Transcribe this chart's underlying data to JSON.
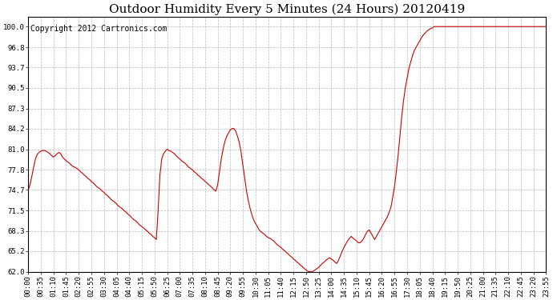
{
  "title": "Outdoor Humidity Every 5 Minutes (24 Hours) 20120419",
  "copyright": "Copyright 2012 Cartronics.com",
  "line_color": "#cc0000",
  "bg_color": "#ffffff",
  "plot_bg_color": "#ffffff",
  "grid_color": "#bbbbbb",
  "ylim": [
    62.0,
    101.5
  ],
  "yticks": [
    62.0,
    65.2,
    68.3,
    71.5,
    74.7,
    77.8,
    81.0,
    84.2,
    87.3,
    90.5,
    93.7,
    96.8,
    100.0
  ],
  "title_fontsize": 11,
  "tick_fontsize": 6.5,
  "copyright_fontsize": 7,
  "humidity_data": [
    74.7,
    75.5,
    76.8,
    78.2,
    79.5,
    80.2,
    80.5,
    80.7,
    80.8,
    80.8,
    80.7,
    80.5,
    80.3,
    80.0,
    79.8,
    80.0,
    80.3,
    80.5,
    80.3,
    79.8,
    79.5,
    79.2,
    79.0,
    78.8,
    78.5,
    78.3,
    78.2,
    78.0,
    77.8,
    77.5,
    77.3,
    77.0,
    76.8,
    76.5,
    76.3,
    76.0,
    75.8,
    75.5,
    75.2,
    75.0,
    74.8,
    74.5,
    74.3,
    74.0,
    73.8,
    73.5,
    73.2,
    73.0,
    72.8,
    72.5,
    72.2,
    72.0,
    71.8,
    71.5,
    71.3,
    71.0,
    70.8,
    70.5,
    70.2,
    70.0,
    69.8,
    69.5,
    69.2,
    69.0,
    68.8,
    68.5,
    68.3,
    68.0,
    67.8,
    67.5,
    67.3,
    67.0,
    71.5,
    77.0,
    79.5,
    80.3,
    80.7,
    81.0,
    80.8,
    80.7,
    80.5,
    80.3,
    80.0,
    79.7,
    79.5,
    79.2,
    79.0,
    78.8,
    78.5,
    78.2,
    78.0,
    77.8,
    77.5,
    77.3,
    77.0,
    76.8,
    76.5,
    76.3,
    76.0,
    75.8,
    75.5,
    75.3,
    75.0,
    74.7,
    74.5,
    75.5,
    77.5,
    79.5,
    81.0,
    82.2,
    83.0,
    83.5,
    84.0,
    84.2,
    84.2,
    83.8,
    83.0,
    82.0,
    80.5,
    78.5,
    76.5,
    74.5,
    73.0,
    71.8,
    70.8,
    70.0,
    69.5,
    69.0,
    68.5,
    68.2,
    68.0,
    67.8,
    67.5,
    67.3,
    67.2,
    67.0,
    66.8,
    66.5,
    66.2,
    66.0,
    65.8,
    65.5,
    65.3,
    65.0,
    64.8,
    64.5,
    64.3,
    64.0,
    63.8,
    63.5,
    63.3,
    63.0,
    62.8,
    62.5,
    62.3,
    62.1,
    62.0,
    62.0,
    62.1,
    62.3,
    62.5,
    62.7,
    63.0,
    63.3,
    63.5,
    63.8,
    64.0,
    64.2,
    64.0,
    63.8,
    63.5,
    63.3,
    63.8,
    64.5,
    65.2,
    65.8,
    66.3,
    66.8,
    67.2,
    67.5,
    67.2,
    67.0,
    66.8,
    66.5,
    66.5,
    66.8,
    67.2,
    67.8,
    68.3,
    68.5,
    68.0,
    67.5,
    67.0,
    67.5,
    68.0,
    68.5,
    69.0,
    69.5,
    70.0,
    70.5,
    71.2,
    72.0,
    73.5,
    75.2,
    77.5,
    80.0,
    83.0,
    86.0,
    88.5,
    90.5,
    92.0,
    93.5,
    94.5,
    95.5,
    96.3,
    96.8,
    97.3,
    97.8,
    98.3,
    98.7,
    99.0,
    99.3,
    99.5,
    99.7,
    99.8,
    100.0,
    100.0,
    100.0,
    100.0,
    100.0,
    100.0,
    100.0,
    100.0,
    100.0,
    100.0,
    100.0,
    100.0,
    100.0,
    100.0,
    100.0,
    100.0,
    100.0,
    100.0,
    100.0,
    100.0,
    100.0,
    100.0,
    100.0,
    100.0,
    100.0,
    100.0,
    100.0,
    100.0,
    100.0,
    100.0,
    100.0,
    100.0,
    100.0,
    100.0,
    100.0,
    100.0,
    100.0,
    100.0,
    100.0,
    100.0,
    100.0,
    100.0,
    100.0,
    100.0,
    100.0,
    100.0,
    100.0,
    100.0,
    100.0,
    100.0,
    100.0,
    100.0,
    100.0,
    100.0,
    100.0,
    100.0,
    100.0,
    100.0,
    100.0,
    100.0,
    100.0,
    100.0,
    100.0
  ],
  "xtick_labels": [
    "00:00",
    "00:35",
    "01:10",
    "01:45",
    "02:20",
    "02:55",
    "03:30",
    "04:05",
    "04:40",
    "05:15",
    "05:50",
    "06:25",
    "07:00",
    "07:35",
    "08:10",
    "08:45",
    "09:20",
    "09:55",
    "10:30",
    "11:05",
    "11:40",
    "12:15",
    "12:50",
    "13:25",
    "14:00",
    "14:35",
    "15:10",
    "15:45",
    "16:20",
    "16:55",
    "17:30",
    "18:05",
    "18:40",
    "19:15",
    "19:50",
    "20:25",
    "21:00",
    "21:35",
    "22:10",
    "22:45",
    "23:20",
    "23:55"
  ]
}
